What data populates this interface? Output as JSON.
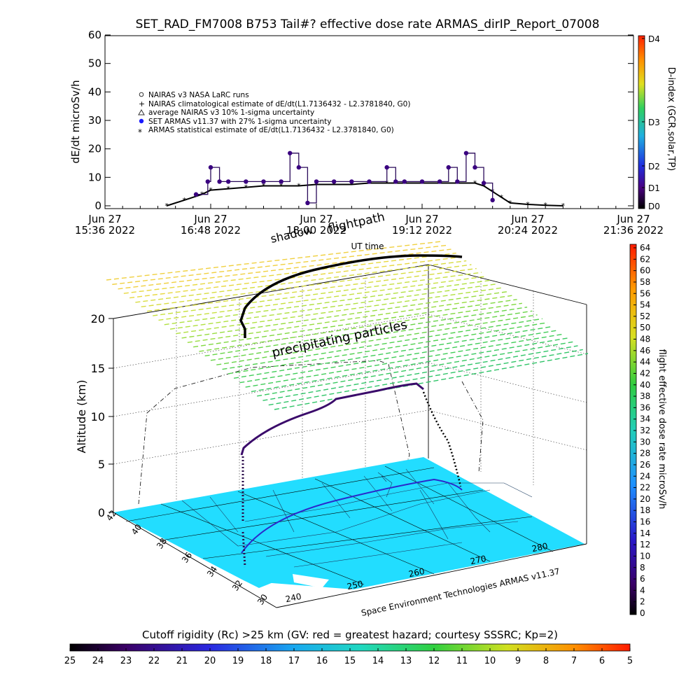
{
  "title": "SET_RAD_FM7008  B753 Tail#? effective dose rate ARMAS_dirIP_Report_07008",
  "top_panel": {
    "ylabel": "dE/dt microSv/h",
    "yticks": [
      "0",
      "10",
      "20",
      "30",
      "40",
      "50",
      "60"
    ],
    "xticks": [
      {
        "line1": "Jun 27",
        "line2": "15:36 2022"
      },
      {
        "line1": "Jun 27",
        "line2": "16:48 2022"
      },
      {
        "line1": "Jun 27",
        "line2": "18:00 2022"
      },
      {
        "line1": "Jun 27",
        "line2": "19:12 2022"
      },
      {
        "line1": "Jun 27",
        "line2": "20:24 2022"
      },
      {
        "line1": "Jun 27",
        "line2": "21:36 2022"
      }
    ],
    "legend": [
      "NAIRAS v3 NASA LaRC runs",
      "NAIRAS climatological estimate of dE/dt(L1.7136432 - L2.3781840, G0)",
      "average NAIRAS v3 10% 1-sigma uncertainty",
      "SET ARMAS v11.37 with 27% 1-sigma uncertainty",
      "ARMAS statistical estimate of dE/dt(L1.7136432 - L2.3781840, G0)"
    ],
    "dindex_label": "D-index (GCR,solar,TP)",
    "dindex_ticks": [
      "D0",
      "D1",
      "D2",
      "D3",
      "D4"
    ]
  },
  "view3d": {
    "zlabel": "Altitude (km)",
    "zticks": [
      "0",
      "5",
      "10",
      "15",
      "20"
    ],
    "lat_ticks": [
      "42",
      "40",
      "38",
      "36",
      "34",
      "32",
      "30"
    ],
    "lon_ticks": [
      "240",
      "250",
      "260",
      "270",
      "280"
    ],
    "shadow_label": "shadow",
    "flightpath_label": "flightpath",
    "ut_label": "UT time",
    "particles_label": "precipitating particles",
    "credit": "Space Environment Technologies ARMAS v11.37"
  },
  "right_colorbar": {
    "label": "flight effective dose rate microSv/h",
    "ticks": [
      "0",
      "2",
      "4",
      "6",
      "8",
      "10",
      "12",
      "14",
      "16",
      "18",
      "20",
      "22",
      "24",
      "26",
      "28",
      "30",
      "32",
      "34",
      "36",
      "38",
      "40",
      "42",
      "44",
      "46",
      "48",
      "50",
      "52",
      "54",
      "56",
      "58",
      "60",
      "62",
      "64"
    ]
  },
  "bottom_colorbar": {
    "title": "Cutoff rigidity (Rc) >25 km (GV: red = greatest hazard; courtesy SSSRC; Kp=2)",
    "ticks": [
      "25",
      "24",
      "23",
      "22",
      "21",
      "20",
      "19",
      "18",
      "17",
      "16",
      "15",
      "14",
      "13",
      "12",
      "11",
      "10",
      "9",
      "8",
      "7",
      "6",
      "5"
    ]
  },
  "chart_data": {
    "type": "line",
    "title": "SET_RAD_FM7008  B753 Tail#? effective dose rate ARMAS_dirIP_Report_07008",
    "xlabel": "",
    "ylabel": "dE/dt microSv/h",
    "ylim": [
      0,
      60
    ],
    "x_range": [
      "Jun 27 15:36 2022",
      "Jun 27 21:36 2022"
    ],
    "series": [
      {
        "name": "NAIRAS climatological estimate of dE/dt(L1.7136432 - L2.3781840, G0)",
        "x": [
          "16:18",
          "16:30",
          "16:42",
          "16:48",
          "17:00",
          "17:12",
          "17:24",
          "17:36",
          "17:48",
          "18:00",
          "18:12",
          "18:24",
          "18:36",
          "18:48",
          "19:00",
          "19:12",
          "19:24",
          "19:36",
          "19:48",
          "19:54",
          "20:00",
          "20:06",
          "20:12",
          "20:24",
          "20:36",
          "20:48"
        ],
        "y": [
          0,
          2,
          4,
          5.5,
          6,
          6.5,
          7,
          7,
          7,
          7.5,
          7.5,
          7.5,
          8,
          8,
          8,
          8,
          8,
          8,
          8,
          7,
          5,
          3,
          1,
          0.5,
          0.2,
          0
        ]
      },
      {
        "name": "SET ARMAS v11.37 with 27% 1-sigma uncertainty",
        "x": [
          "16:38",
          "16:46",
          "16:48",
          "16:54",
          "17:00",
          "17:12",
          "17:24",
          "17:36",
          "17:42",
          "17:48",
          "17:54",
          "18:00",
          "18:12",
          "18:24",
          "18:36",
          "18:48",
          "18:54",
          "19:00",
          "19:12",
          "19:24",
          "19:30",
          "19:36",
          "19:42",
          "19:48",
          "19:54",
          "20:00"
        ],
        "y": [
          4,
          8.5,
          13.5,
          8.5,
          8.5,
          8.5,
          8.5,
          8.5,
          18.5,
          13.5,
          1,
          8.5,
          8.5,
          8.5,
          8.5,
          13.5,
          8.5,
          8.5,
          8.5,
          8.5,
          13.5,
          8.5,
          18.5,
          13.5,
          8,
          2
        ]
      }
    ],
    "grid": false,
    "legend_position": "top-left"
  }
}
